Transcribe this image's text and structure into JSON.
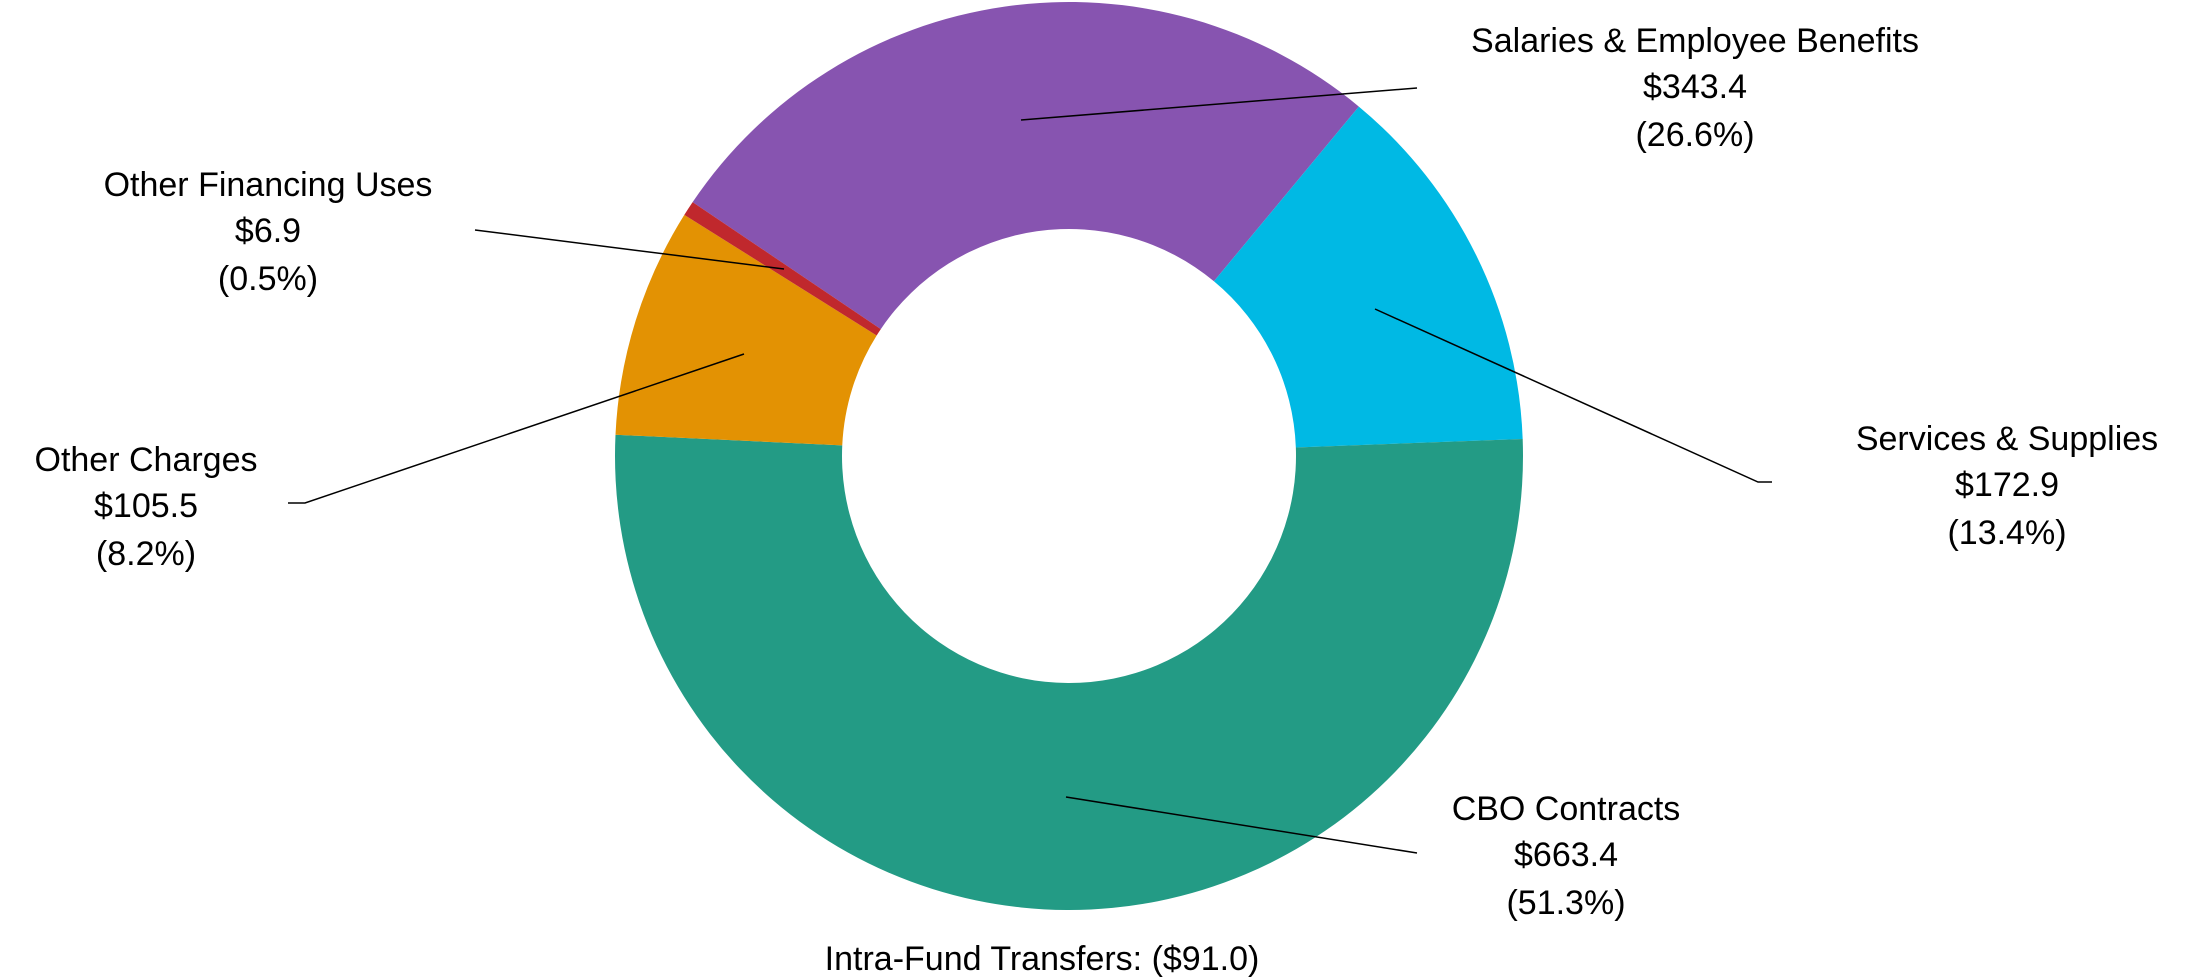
{
  "chart_data": {
    "type": "donut",
    "categories": [
      "Salaries & Employee Benefits",
      "Services & Supplies",
      "CBO Contracts",
      "Other Charges",
      "Other Financing Uses"
    ],
    "values": [
      343.4,
      172.9,
      663.4,
      105.5,
      6.9
    ],
    "value_labels": [
      "$343.4",
      "$172.9",
      "$663.4",
      "$105.5",
      "$6.9"
    ],
    "shares": [
      26.6,
      13.4,
      51.3,
      8.2,
      0.5
    ],
    "share_labels": [
      "(26.6%)",
      "(13.4%)",
      "(51.3%)",
      "(8.2%)",
      "(0.5%)"
    ],
    "colors": [
      "#8754b0",
      "#00b9e4",
      "#239b85",
      "#e39203",
      "#c0282d"
    ],
    "annotation": "Intra-Fund Transfers: ($91.0)"
  }
}
